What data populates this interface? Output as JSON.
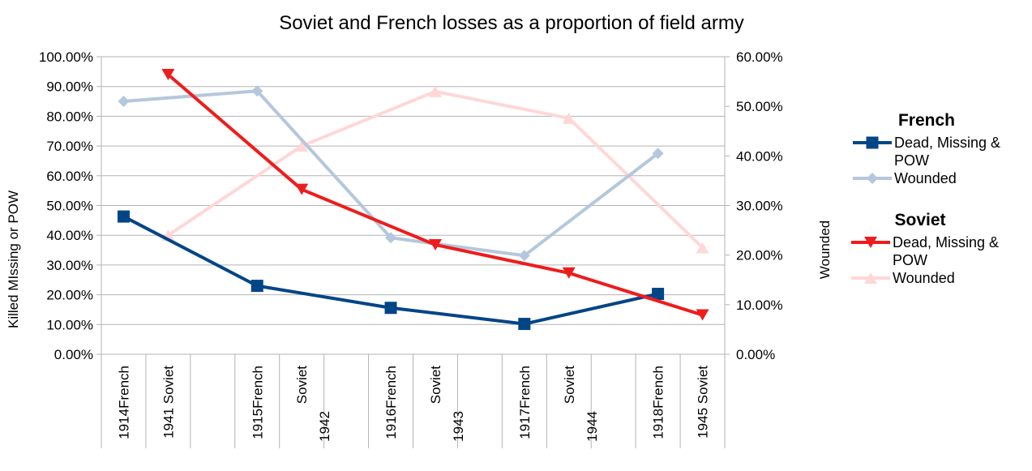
{
  "chart_data": {
    "type": "line",
    "title": "Soviet and French losses as a proportion of field army",
    "ylabel_left": "Killed MIssing or POW",
    "ylabel_right": "Wounded",
    "ylim_left": [
      0,
      100
    ],
    "ylim_right": [
      0,
      60
    ],
    "y_ticks_left": [
      "0.00%",
      "10.00%",
      "20.00%",
      "30.00%",
      "40.00%",
      "50.00%",
      "60.00%",
      "70.00%",
      "80.00%",
      "90.00%",
      "100.00%"
    ],
    "y_ticks_right": [
      "0.00%",
      "10.00%",
      "20.00%",
      "30.00%",
      "40.00%",
      "50.00%",
      "60.00%"
    ],
    "categories": [
      "1914French",
      "1941 Soviet",
      "",
      "1915French",
      "Soviet\n1942",
      "",
      "1916French",
      "Soviet\n1943",
      "",
      "1917French",
      "Soviet\n1944",
      "",
      "1918French",
      "1945 Soviet"
    ],
    "grid": true,
    "legend_position": "right",
    "groups": [
      {
        "title": "French",
        "series": [
          {
            "name": "Dead, Missing & POW",
            "axis": "left",
            "color": "#004586",
            "marker": "square",
            "points": [
              {
                "cat": 0,
                "value": 46.3
              },
              {
                "cat": 3,
                "value": 23.0
              },
              {
                "cat": 6,
                "value": 15.6
              },
              {
                "cat": 9,
                "value": 10.2
              },
              {
                "cat": 12,
                "value": 20.3
              }
            ]
          },
          {
            "name": "Wounded",
            "axis": "right",
            "color": "#b4c7dc",
            "marker": "diamond",
            "points": [
              {
                "cat": 0,
                "value": 51.0
              },
              {
                "cat": 3,
                "value": 53.1
              },
              {
                "cat": 6,
                "value": 23.5
              },
              {
                "cat": 9,
                "value": 19.9
              },
              {
                "cat": 12,
                "value": 40.5
              }
            ]
          }
        ]
      },
      {
        "title": "Soviet",
        "series": [
          {
            "name": "Dead, Missing & POW",
            "axis": "left",
            "color": "#ee1c1c",
            "marker": "triangle-down",
            "points": [
              {
                "cat": 1,
                "value": 94.0
              },
              {
                "cat": 4,
                "value": 55.4
              },
              {
                "cat": 7,
                "value": 36.8
              },
              {
                "cat": 10,
                "value": 27.3
              },
              {
                "cat": 13,
                "value": 13.2
              }
            ]
          },
          {
            "name": "Wounded",
            "axis": "right",
            "color": "#ffd7d7",
            "marker": "triangle-up",
            "points": [
              {
                "cat": 1,
                "value": 24.0
              },
              {
                "cat": 4,
                "value": 42.0
              },
              {
                "cat": 7,
                "value": 53.0
              },
              {
                "cat": 10,
                "value": 47.6
              },
              {
                "cat": 13,
                "value": 21.5
              }
            ]
          }
        ]
      }
    ]
  }
}
